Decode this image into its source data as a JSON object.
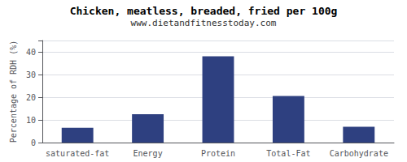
{
  "chart_data": {
    "type": "bar",
    "title": "Chicken, meatless, breaded, fried per 100g",
    "subtitle": "www.dietandfitnesstoday.com",
    "categories": [
      "saturated-fat",
      "Energy",
      "Protein",
      "Total-Fat",
      "Carbohydrate"
    ],
    "values": [
      6.5,
      12.5,
      38.0,
      20.5,
      7.0
    ],
    "color": "#2e4080",
    "ylabel": "Percentage of RDH (%)",
    "ylim": [
      0,
      45
    ],
    "yticks": [
      0,
      10,
      20,
      30,
      40
    ],
    "grid": true
  }
}
